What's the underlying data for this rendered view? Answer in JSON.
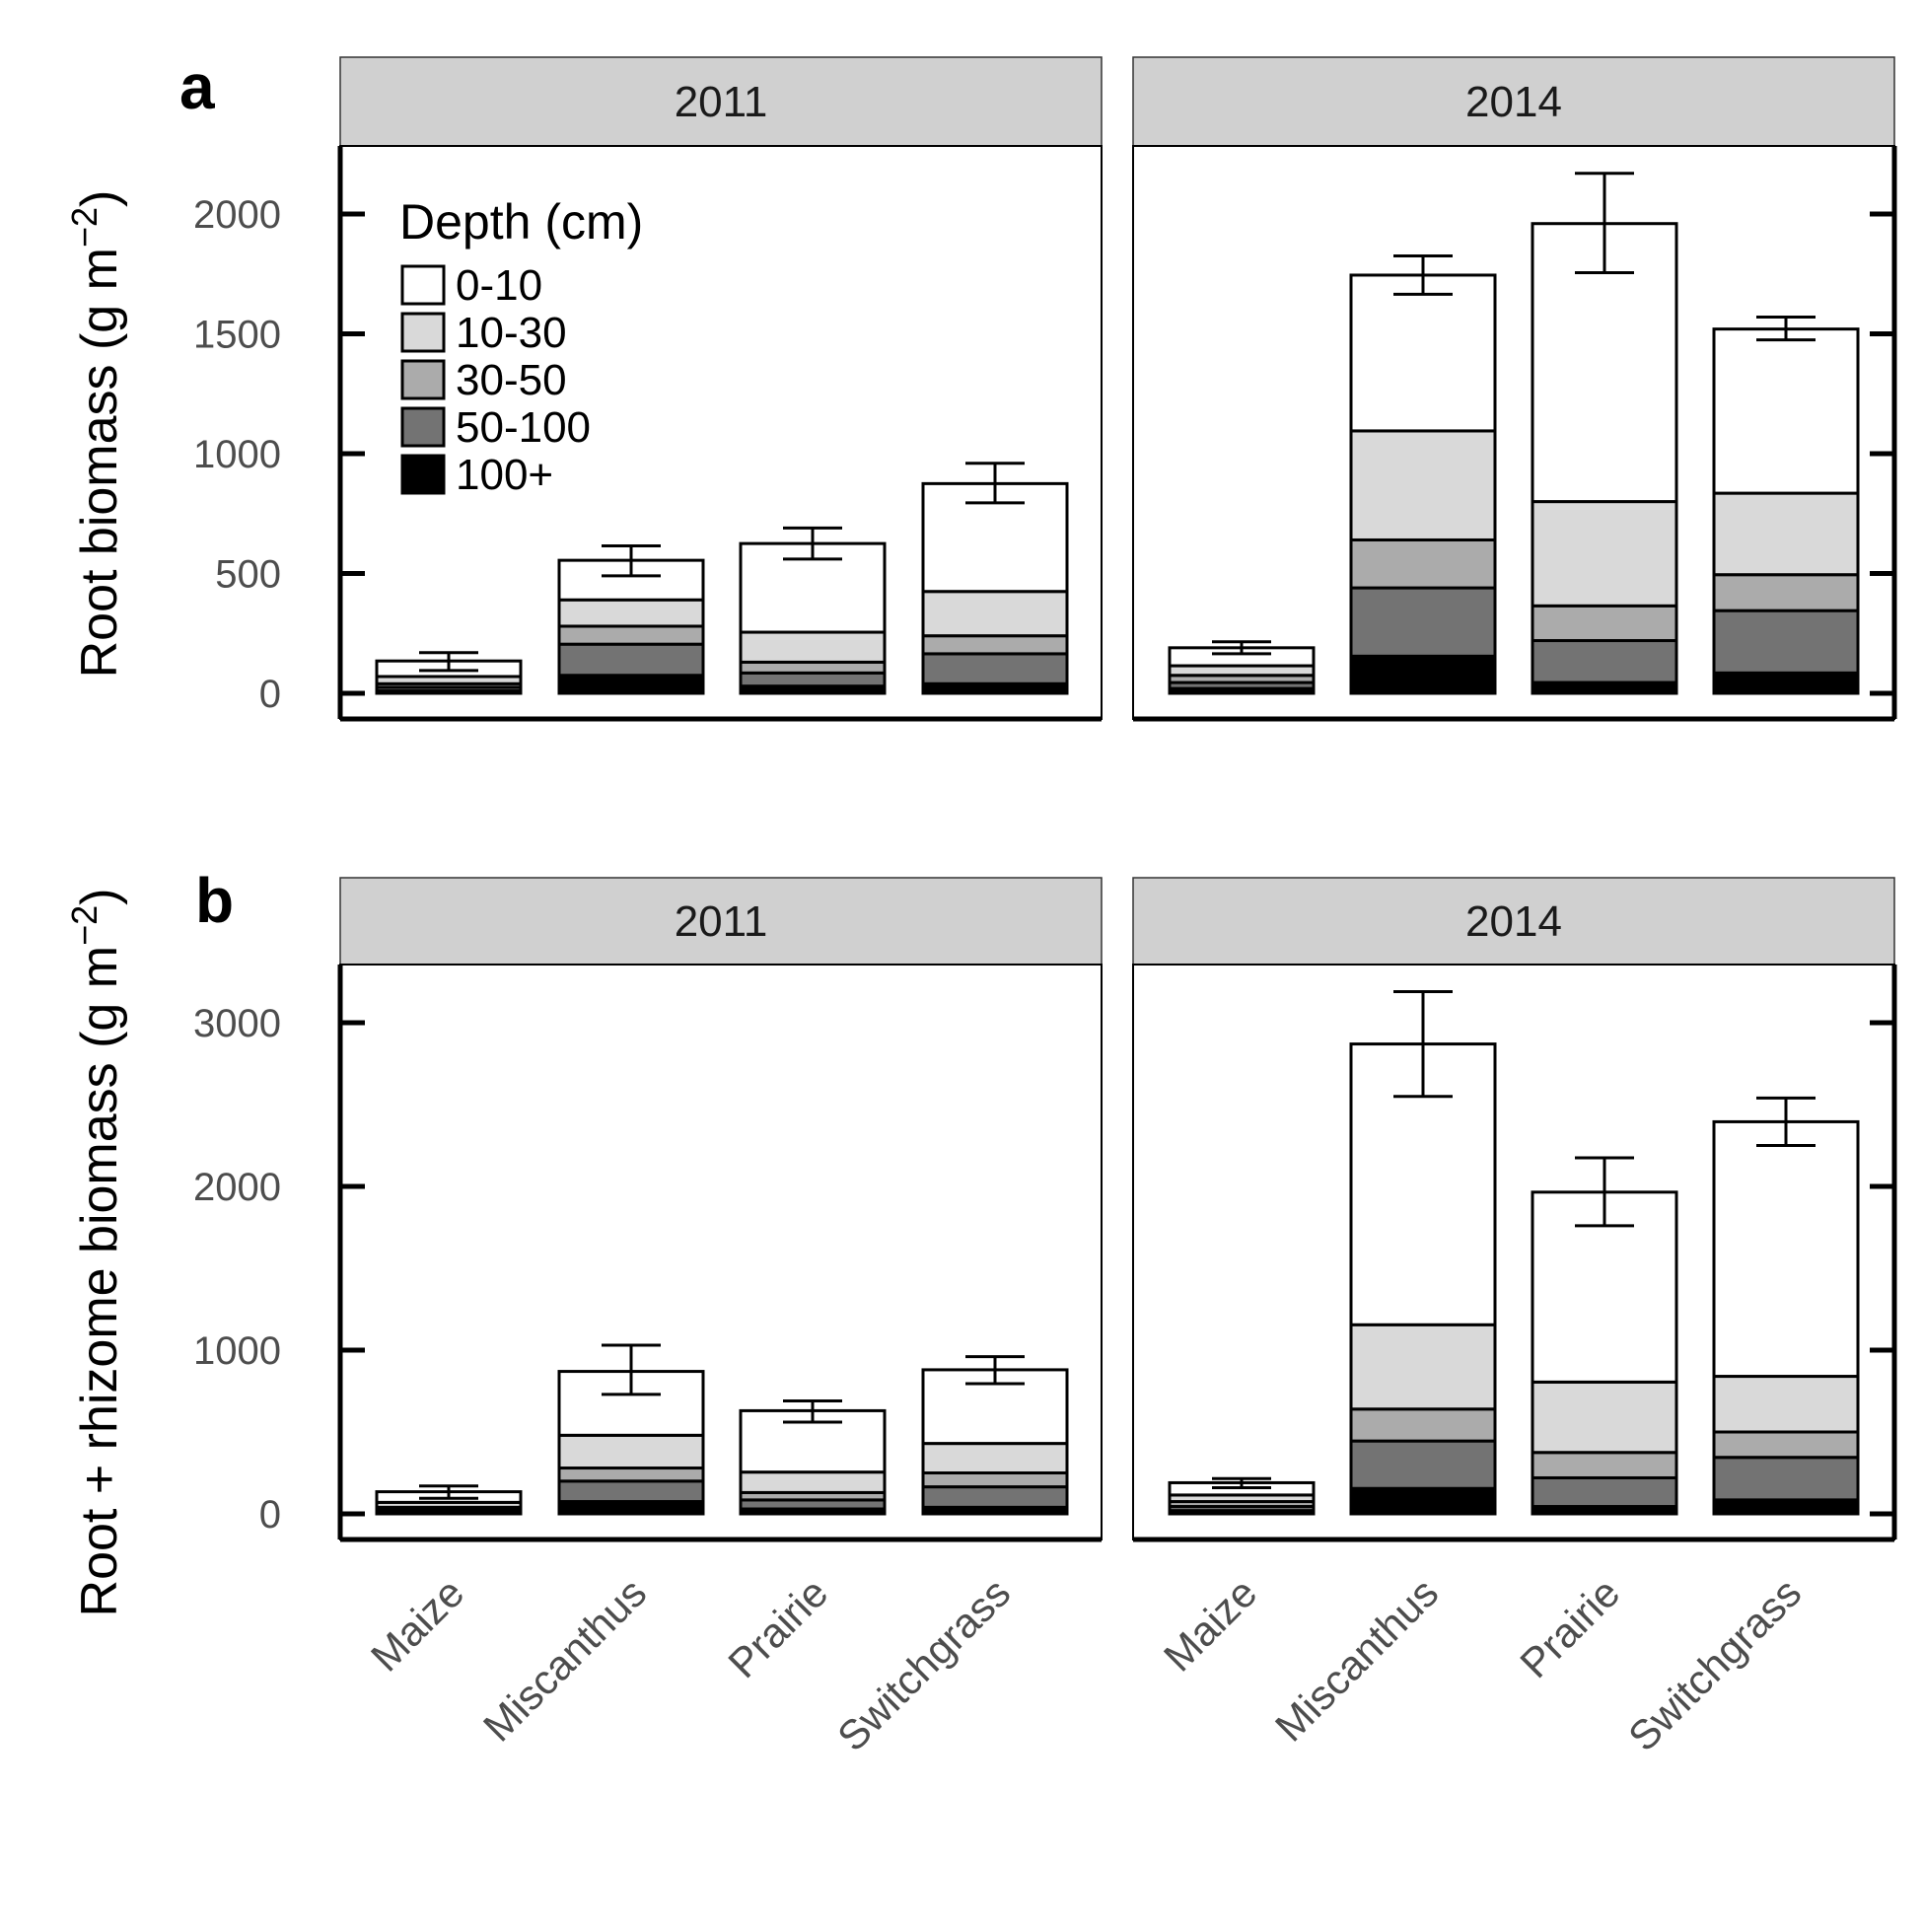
{
  "colors": {
    "depth": [
      "#ffffff",
      "#d9d9d9",
      "#ababab",
      "#737373",
      "#000000"
    ],
    "strip_fill": "#d0d0d0",
    "outline": "#000000"
  },
  "legend": {
    "title": "Depth (cm)",
    "labels": [
      "0-10",
      "10-30",
      "30-50",
      "50-100",
      "100+"
    ]
  },
  "panels": [
    {
      "letter": "a",
      "ylabel": "Root biomass (g m",
      "ylabel_sup": "−2",
      "ylabel_close": ")"
    },
    {
      "letter": "b",
      "ylabel": "Root + rhizome biomass (g m",
      "ylabel_sup": "−2",
      "ylabel_close": ")"
    }
  ],
  "chart_data": [
    {
      "type": "bar",
      "stacked": true,
      "panel": "a",
      "ylabel": "Root biomass (g m−2)",
      "ylim": [
        0,
        2250
      ],
      "yticks": [
        0,
        500,
        1000,
        1500,
        2000
      ],
      "categories": [
        "Maize",
        "Miscanthus",
        "Prairie",
        "Switchgrass"
      ],
      "legend_order": [
        "0-10",
        "10-30",
        "30-50",
        "50-100",
        "100+"
      ],
      "facets": [
        {
          "label": "2011",
          "stacks": [
            [
              0.0,
              10,
              25,
              40,
              70,
              135
            ],
            [
              0.0,
              75,
              205,
              280,
              390,
              555
            ],
            [
              0.0,
              30,
              85,
              130,
              255,
              625
            ],
            [
              0.0,
              40,
              165,
              240,
              425,
              875
            ]
          ],
          "error_low": [
            95,
            490,
            560,
            795
          ],
          "error_high": [
            170,
            615,
            690,
            960
          ]
        },
        {
          "label": "2014",
          "stacks": [
            [
              0.0,
              20,
              45,
              75,
              115,
              190
            ],
            [
              0.0,
              155,
              440,
              640,
              1095,
              1745
            ],
            [
              0.0,
              45,
              220,
              365,
              800,
              1960
            ],
            [
              0.0,
              85,
              345,
              495,
              835,
              1520
            ]
          ],
          "error_low": [
            165,
            1665,
            1755,
            1475
          ],
          "error_high": [
            215,
            1825,
            2170,
            1570
          ]
        }
      ]
    },
    {
      "type": "bar",
      "stacked": true,
      "panel": "b",
      "ylabel": "Root + rhizome biomass (g m−2)",
      "ylim": [
        -150,
        3300
      ],
      "yticks": [
        0,
        1000,
        2000,
        3000
      ],
      "categories": [
        "Maize",
        "Miscanthus",
        "Prairie",
        "Switchgrass"
      ],
      "legend_order": [
        "0-10",
        "10-30",
        "30-50",
        "50-100",
        "100+"
      ],
      "facets": [
        {
          "label": "2011",
          "stacks": [
            [
              0.0,
              10,
              25,
              40,
              70,
              135
            ],
            [
              0.0,
              75,
              200,
              280,
              480,
              870
            ],
            [
              0.0,
              30,
              85,
              130,
              255,
              630
            ],
            [
              0.0,
              40,
              165,
              250,
              430,
              880
            ]
          ],
          "error_low": [
            95,
            730,
            560,
            795
          ],
          "error_high": [
            170,
            1030,
            690,
            960
          ]
        },
        {
          "label": "2014",
          "stacks": [
            [
              0.0,
              20,
              45,
              75,
              115,
              190
            ],
            [
              0.0,
              155,
              445,
              640,
              1155,
              2870
            ],
            [
              0.0,
              45,
              220,
              375,
              805,
              1965
            ],
            [
              0.0,
              85,
              345,
              500,
              840,
              2395
            ]
          ],
          "error_low": [
            160,
            2550,
            1760,
            2250
          ],
          "error_high": [
            215,
            3190,
            2175,
            2540
          ]
        }
      ]
    }
  ]
}
